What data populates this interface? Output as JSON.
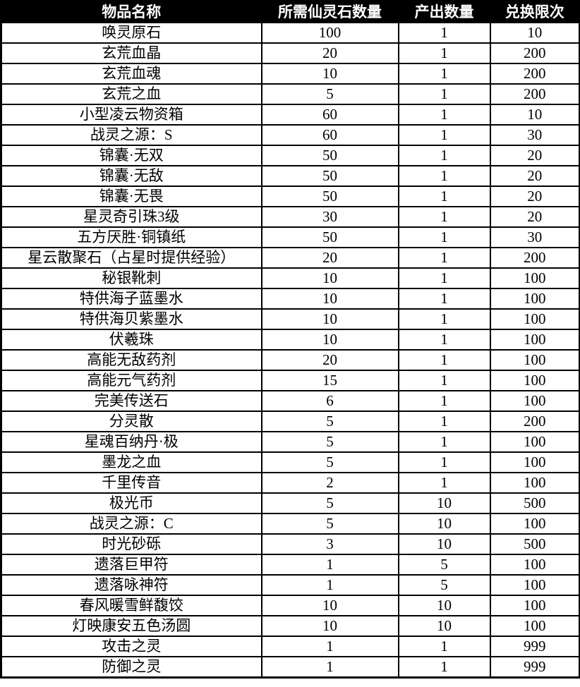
{
  "colors": {
    "header_bg": "#000000",
    "header_text": "#ffffff",
    "border": "#000000",
    "body_bg": "#ffffff",
    "body_text": "#000000"
  },
  "table": {
    "columns": [
      "物品名称",
      "所需仙灵石数量",
      "产出数量",
      "兑换限次"
    ],
    "column_keys": [
      "item-name",
      "required-stones",
      "output-quantity",
      "exchange-limit"
    ],
    "rows": [
      [
        "唤灵原石",
        100,
        1,
        10
      ],
      [
        "玄荒血晶",
        20,
        1,
        200
      ],
      [
        "玄荒血魂",
        10,
        1,
        200
      ],
      [
        "玄荒之血",
        5,
        1,
        200
      ],
      [
        "小型凌云物资箱",
        60,
        1,
        10
      ],
      [
        "战灵之源：S",
        60,
        1,
        30
      ],
      [
        "锦囊·无双",
        50,
        1,
        20
      ],
      [
        "锦囊·无敌",
        50,
        1,
        20
      ],
      [
        "锦囊·无畏",
        50,
        1,
        20
      ],
      [
        "星灵奇引珠3级",
        30,
        1,
        20
      ],
      [
        "五方厌胜·铜镇纸",
        50,
        1,
        30
      ],
      [
        "星云散聚石（占星时提供经验）",
        20,
        1,
        200
      ],
      [
        "秘银靴刺",
        10,
        1,
        100
      ],
      [
        "特供海子蓝墨水",
        10,
        1,
        100
      ],
      [
        "特供海贝紫墨水",
        10,
        1,
        100
      ],
      [
        "伏羲珠",
        10,
        1,
        100
      ],
      [
        "高能无敌药剂",
        20,
        1,
        100
      ],
      [
        "高能元气药剂",
        15,
        1,
        100
      ],
      [
        "完美传送石",
        6,
        1,
        100
      ],
      [
        "分灵散",
        5,
        1,
        200
      ],
      [
        "星魂百纳丹·极",
        5,
        1,
        100
      ],
      [
        "墨龙之血",
        5,
        1,
        100
      ],
      [
        "千里传音",
        2,
        1,
        100
      ],
      [
        "极光币",
        5,
        10,
        500
      ],
      [
        "战灵之源：C",
        5,
        10,
        100
      ],
      [
        "时光砂砾",
        3,
        10,
        500
      ],
      [
        "遗落巨甲符",
        1,
        5,
        100
      ],
      [
        "遗落咏神符",
        1,
        5,
        100
      ],
      [
        "春风暖雪鲜馥饺",
        10,
        10,
        100
      ],
      [
        "灯映康安五色汤圆",
        10,
        10,
        100
      ],
      [
        "攻击之灵",
        1,
        1,
        999
      ],
      [
        "防御之灵",
        1,
        1,
        999
      ]
    ]
  }
}
